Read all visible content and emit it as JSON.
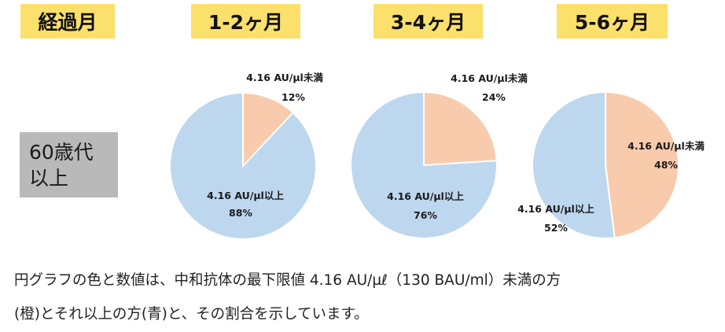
{
  "headers": [
    "経過月",
    "1-2ヶ月",
    "3-4ヶ月",
    "5-6ヶ月"
  ],
  "row_label": [
    "60歳代",
    "以上"
  ],
  "colors": {
    "below": "#f8cbad",
    "above": "#bdd7ee",
    "header_bg": "#fbe06c",
    "row_bg": "#b9b9b9"
  },
  "chart_data": [
    {
      "type": "pie",
      "title": "1-2ヶ月",
      "slices": [
        {
          "label": "4.16 AU/µl未満",
          "value": 12,
          "value_label": "12%",
          "color": "#f8cbad"
        },
        {
          "label": "4.16 AU/µl以上",
          "value": 88,
          "value_label": "88%",
          "color": "#bdd7ee"
        }
      ]
    },
    {
      "type": "pie",
      "title": "3-4ヶ月",
      "slices": [
        {
          "label": "4.16 AU/µl未満",
          "value": 24,
          "value_label": "24%",
          "color": "#f8cbad"
        },
        {
          "label": "4.16 AU/µl以上",
          "value": 76,
          "value_label": "76%",
          "color": "#bdd7ee"
        }
      ]
    },
    {
      "type": "pie",
      "title": "5-6ヶ月",
      "slices": [
        {
          "label": "4.16 AU/µl未満",
          "value": 48,
          "value_label": "48%",
          "color": "#f8cbad"
        },
        {
          "label": "4.16 AU/µl以上",
          "value": 52,
          "value_label": "52%",
          "color": "#bdd7ee"
        }
      ]
    }
  ],
  "footer": [
    "円グラフの色と数値は、中和抗体の最下限値 4.16 AU/µℓ（130 BAU/ml）未満の方",
    "(橙)とそれ以上の方(青)と、その割合を示しています。"
  ]
}
